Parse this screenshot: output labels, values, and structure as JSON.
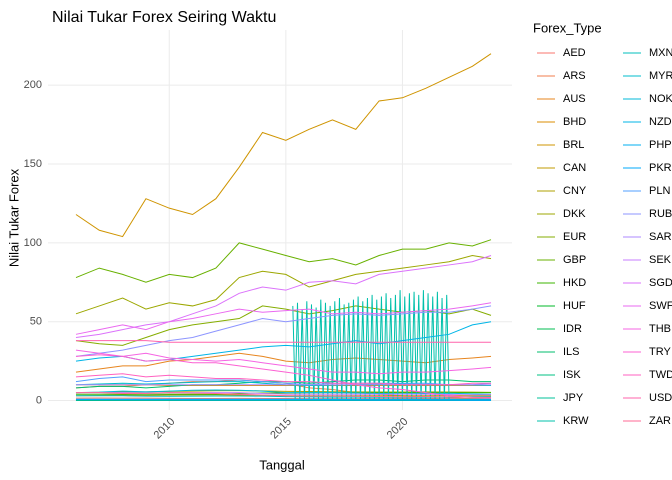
{
  "chart_data": {
    "type": "line",
    "title": "Nilai Tukar Forex Seiring Waktu",
    "x_label": "Tanggal",
    "y_label": "Nilai Tukar Forex",
    "legend_title": "Forex_Type",
    "legend_position": "right",
    "grid": true,
    "xlim": [
      2004.8,
      2024.7
    ],
    "ylim": [
      -6,
      235
    ],
    "xticks": [
      2010,
      2015,
      2020
    ],
    "yticks": [
      0,
      50,
      100,
      150,
      200
    ],
    "x": [
      2006,
      2007,
      2008,
      2009,
      2010,
      2011,
      2012,
      2013,
      2014,
      2015,
      2016,
      2017,
      2018,
      2019,
      2020,
      2021,
      2022,
      2023,
      2023.8
    ],
    "series": [
      {
        "name": "AED",
        "color": "#F8766D",
        "values": [
          1.5,
          1.6,
          1.5,
          1.5,
          1.4,
          1.3,
          1.3,
          1.4,
          1.3,
          1.3,
          1.2,
          1.2,
          1.2,
          1.2,
          1.3,
          1.3,
          1.4,
          1.4,
          1.4
        ]
      },
      {
        "name": "ARS",
        "color": "#F07E4E",
        "values": [
          8,
          9,
          9,
          10,
          11,
          12,
          12,
          13,
          12,
          11,
          8,
          7,
          5,
          4,
          3,
          2.5,
          2,
          1,
          0.5
        ]
      },
      {
        "name": "AUS",
        "color": "#E7851E",
        "values": [
          18,
          20,
          22,
          22,
          25,
          26,
          28,
          30,
          28,
          25,
          24,
          26,
          27,
          26,
          25,
          24,
          26,
          27,
          28
        ]
      },
      {
        "name": "BHD",
        "color": "#DB8E00",
        "values": [
          10,
          10,
          10,
          10,
          9.5,
          9.5,
          9.5,
          9.5,
          9.5,
          9.5,
          9.5,
          9.5,
          9.5,
          9.5,
          9.5,
          9.5,
          9.5,
          9.5,
          9.5
        ]
      },
      {
        "name": "BRL",
        "color": "#CF9400",
        "values": [
          118,
          108,
          104,
          128,
          122,
          118,
          128,
          148,
          170,
          165,
          172,
          178,
          172,
          190,
          192,
          198,
          205,
          212,
          220
        ]
      },
      {
        "name": "CAN",
        "color": "#C09B00",
        "values": [
          3,
          3.2,
          3.5,
          3.2,
          3.5,
          3.6,
          3.7,
          3.5,
          3.3,
          3,
          3,
          3,
          3,
          3,
          3,
          3,
          3.1,
          3,
          3
        ]
      },
      {
        "name": "CNY",
        "color": "#AFA100",
        "values": [
          5,
          5.2,
          5.5,
          5.5,
          5.8,
          6,
          6.2,
          6.3,
          6.1,
          5.8,
          5.7,
          5.6,
          5.5,
          5.4,
          5.4,
          5.5,
          5.4,
          5.3,
          5.2
        ]
      },
      {
        "name": "DKK",
        "color": "#9CA700",
        "values": [
          55,
          60,
          65,
          58,
          62,
          60,
          64,
          78,
          82,
          80,
          72,
          76,
          80,
          82,
          84,
          86,
          88,
          92,
          90
        ]
      },
      {
        "name": "EUR",
        "color": "#85AD00",
        "values": [
          38,
          36,
          35,
          40,
          45,
          48,
          50,
          52,
          60,
          58,
          55,
          57,
          60,
          58,
          56,
          57,
          55,
          58,
          54
        ]
      },
      {
        "name": "GBP",
        "color": "#68B100",
        "values": [
          78,
          84,
          80,
          75,
          80,
          78,
          84,
          100,
          96,
          92,
          88,
          90,
          86,
          92,
          96,
          96,
          100,
          98,
          102
        ]
      },
      {
        "name": "HKD",
        "color": "#3DB600",
        "values": [
          4,
          4,
          4,
          4,
          4,
          4,
          4,
          4.5,
          4.8,
          4.8,
          4.9,
          5,
          5,
          5,
          5,
          5,
          5,
          5,
          5
        ]
      },
      {
        "name": "HUF",
        "color": "#00B929",
        "values": [
          0.2,
          0.2,
          0.2,
          0.2,
          0.2,
          0.2,
          0.2,
          0.2,
          0.2,
          0.2,
          0.2,
          0.2,
          0.2,
          0.2,
          0.2,
          0.2,
          0.2,
          0.2,
          0.2
        ]
      },
      {
        "name": "IDR",
        "color": "#00BC51",
        "values": [
          0,
          0,
          0,
          0,
          0,
          0,
          0,
          0,
          0,
          0,
          0,
          0,
          0,
          0,
          0,
          0,
          0,
          0,
          0
        ]
      },
      {
        "name": "ILS",
        "color": "#00BE6C",
        "values": [
          8,
          9,
          9,
          8,
          9,
          10,
          10,
          11,
          12,
          12,
          11,
          12,
          13,
          13,
          12,
          13,
          13,
          12,
          12
        ]
      },
      {
        "name": "ISK",
        "color": "#00C083",
        "values": [
          0.5,
          0.5,
          0.4,
          0.3,
          0.3,
          0.3,
          0.3,
          0.3,
          0.3,
          0.3,
          0.3,
          0.3,
          0.3,
          0.3,
          0.3,
          0.3,
          0.3,
          0.3,
          0.3
        ]
      },
      {
        "name": "JPY",
        "color": "#00C098",
        "values": [
          0.3,
          0.3,
          0.3,
          0.3,
          0.3,
          0.3,
          0.3,
          0.3,
          0.3,
          0.3,
          0.3,
          0.3,
          0.3,
          0.3,
          0.3,
          0.3,
          0.3,
          0.3,
          0.3
        ]
      },
      {
        "name": "KRW",
        "color": "#00C0AB",
        "x": [
          2015.3,
          2015.4,
          2015.5,
          2015.6,
          2015.7,
          2015.8,
          2015.9,
          2016.0,
          2016.1,
          2016.2,
          2016.3,
          2016.4,
          2016.5,
          2016.6,
          2016.7,
          2016.8,
          2016.9,
          2017.0,
          2017.1,
          2017.2,
          2017.3,
          2017.4,
          2017.5,
          2017.6,
          2017.7,
          2017.8,
          2017.9,
          2018.0,
          2018.1,
          2018.2,
          2018.3,
          2018.4,
          2018.5,
          2018.6,
          2018.7,
          2018.8,
          2018.9,
          2019.0,
          2019.1,
          2019.2,
          2019.3,
          2019.4,
          2019.5,
          2019.6,
          2019.7,
          2019.8,
          2019.9,
          2020.0,
          2020.1,
          2020.2,
          2020.3,
          2020.4,
          2020.5,
          2020.6,
          2020.7,
          2020.8,
          2020.9,
          2021.0,
          2021.1,
          2021.2,
          2021.3,
          2021.4,
          2021.5,
          2021.6,
          2021.7,
          2021.8,
          2021.9,
          2022.0
        ],
        "values": [
          60,
          0.5,
          62,
          0.5,
          58,
          0.5,
          63,
          0.5,
          61,
          0.5,
          59,
          0.5,
          64,
          0.5,
          62,
          0.5,
          60,
          0.5,
          63,
          0.5,
          65,
          0.5,
          61,
          0.5,
          62,
          0.5,
          64,
          0.5,
          66,
          0.5,
          63,
          0.5,
          65,
          0.5,
          67,
          0.5,
          64,
          0.5,
          66,
          0.5,
          68,
          0.5,
          65,
          0.5,
          67,
          0.5,
          70,
          0.5,
          66,
          0.5,
          68,
          0.5,
          69,
          0.5,
          67,
          0.5,
          70,
          0.5,
          68,
          0.5,
          66,
          0.5,
          69,
          0.5,
          65,
          0.5,
          67,
          0.5
        ]
      },
      {
        "name": "MXN",
        "color": "#00BFBC",
        "values": [
          3,
          3,
          3,
          2.8,
          2.7,
          2.8,
          2.9,
          2.9,
          2.8,
          2.5,
          2.3,
          2.2,
          2.2,
          2.1,
          2,
          2.1,
          2.2,
          2.4,
          2.5
        ]
      },
      {
        "name": "MYR",
        "color": "#00BDCC",
        "values": [
          10,
          10.5,
          11,
          10.5,
          11,
          11.5,
          12,
          12,
          11,
          10,
          9.5,
          9.8,
          10,
          10.5,
          10.5,
          10.2,
          10,
          9.8,
          9.5
        ]
      },
      {
        "name": "NOK",
        "color": "#00BADA",
        "values": [
          5,
          5.3,
          6,
          5.5,
          6,
          6.5,
          6.7,
          6.5,
          6,
          5,
          5,
          5,
          4.8,
          4.5,
          4.3,
          4.5,
          4.6,
          4.2,
          4
        ]
      },
      {
        "name": "NZD",
        "color": "#00B5E7",
        "values": [
          25,
          27,
          28,
          25,
          26,
          28,
          30,
          32,
          34,
          35,
          34,
          36,
          38,
          36,
          38,
          40,
          42,
          48,
          50
        ]
      },
      {
        "name": "PHP",
        "color": "#00AFF2",
        "values": [
          0.8,
          0.8,
          0.8,
          0.8,
          0.8,
          0.8,
          0.8,
          0.8,
          0.8,
          0.8,
          0.8,
          0.8,
          0.8,
          0.8,
          0.8,
          0.8,
          0.8,
          0.8,
          0.8
        ]
      },
      {
        "name": "PKR",
        "color": "#00A8FB",
        "values": [
          0.5,
          0.5,
          0.45,
          0.4,
          0.4,
          0.38,
          0.35,
          0.33,
          0.33,
          0.33,
          0.33,
          0.3,
          0.25,
          0.22,
          0.23,
          0.22,
          0.18,
          0.13,
          0.12
        ]
      },
      {
        "name": "PLN",
        "color": "#529FFF",
        "values": [
          12,
          14,
          15,
          12,
          13,
          13,
          13,
          13,
          12,
          11,
          10,
          11,
          11,
          11,
          11,
          11,
          10,
          10,
          11
        ]
      },
      {
        "name": "RUB",
        "color": "#8D95FF",
        "values": [
          28,
          30,
          32,
          35,
          38,
          40,
          44,
          48,
          52,
          50,
          52,
          54,
          55,
          54,
          55,
          56,
          56,
          58,
          60
        ]
      },
      {
        "name": "SAR",
        "color": "#AE8AFF",
        "values": [
          10,
          10,
          10,
          10,
          10,
          10,
          10,
          10,
          10,
          10,
          10,
          10,
          10,
          10,
          10,
          10,
          10,
          10,
          10
        ]
      },
      {
        "name": "SEK",
        "color": "#C77CFF",
        "values": [
          5,
          5,
          5,
          4.7,
          5,
          5,
          5,
          5,
          4.5,
          4,
          4,
          4,
          4,
          4,
          4,
          4,
          3.8,
          3.6,
          3.7
        ]
      },
      {
        "name": "SGD",
        "color": "#DB72FB",
        "values": [
          40,
          42,
          45,
          48,
          50,
          55,
          60,
          68,
          72,
          70,
          75,
          76,
          74,
          80,
          82,
          84,
          86,
          88,
          92
        ]
      },
      {
        "name": "SWF",
        "color": "#EA69F0",
        "values": [
          42,
          45,
          48,
          45,
          50,
          52,
          55,
          58,
          56,
          57,
          58,
          55,
          56,
          55,
          56,
          57,
          58,
          60,
          62
        ]
      },
      {
        "name": "THB",
        "color": "#F564E3",
        "values": [
          32,
          30,
          28,
          30,
          27,
          26,
          25,
          26,
          24,
          22,
          20,
          18,
          18,
          17,
          18,
          18,
          19,
          20,
          21
        ]
      },
      {
        "name": "TRY",
        "color": "#FC61D3",
        "values": [
          28,
          29,
          28,
          25,
          26,
          24,
          24,
          22,
          20,
          18,
          16,
          13,
          10,
          8,
          7,
          5,
          3,
          2,
          1.5
        ]
      },
      {
        "name": "TWD",
        "color": "#FF61C0",
        "values": [
          15,
          16,
          17,
          15,
          16,
          15,
          14,
          14,
          13,
          12,
          12,
          11,
          11,
          11,
          10,
          10,
          10,
          11,
          11
        ]
      },
      {
        "name": "USD",
        "color": "#FF63AB",
        "values": [
          38,
          38,
          38,
          38,
          37,
          37,
          37,
          37,
          37,
          37,
          37,
          37,
          37,
          37,
          37,
          37,
          37,
          37,
          37
        ]
      },
      {
        "name": "ZAR",
        "color": "#FF6A94",
        "values": [
          5,
          5,
          4.5,
          4.5,
          5,
          4.8,
          4.5,
          4,
          3.5,
          3,
          2.8,
          2.9,
          2.7,
          2.6,
          2.3,
          2.5,
          2.4,
          2.1,
          2
        ]
      }
    ]
  }
}
